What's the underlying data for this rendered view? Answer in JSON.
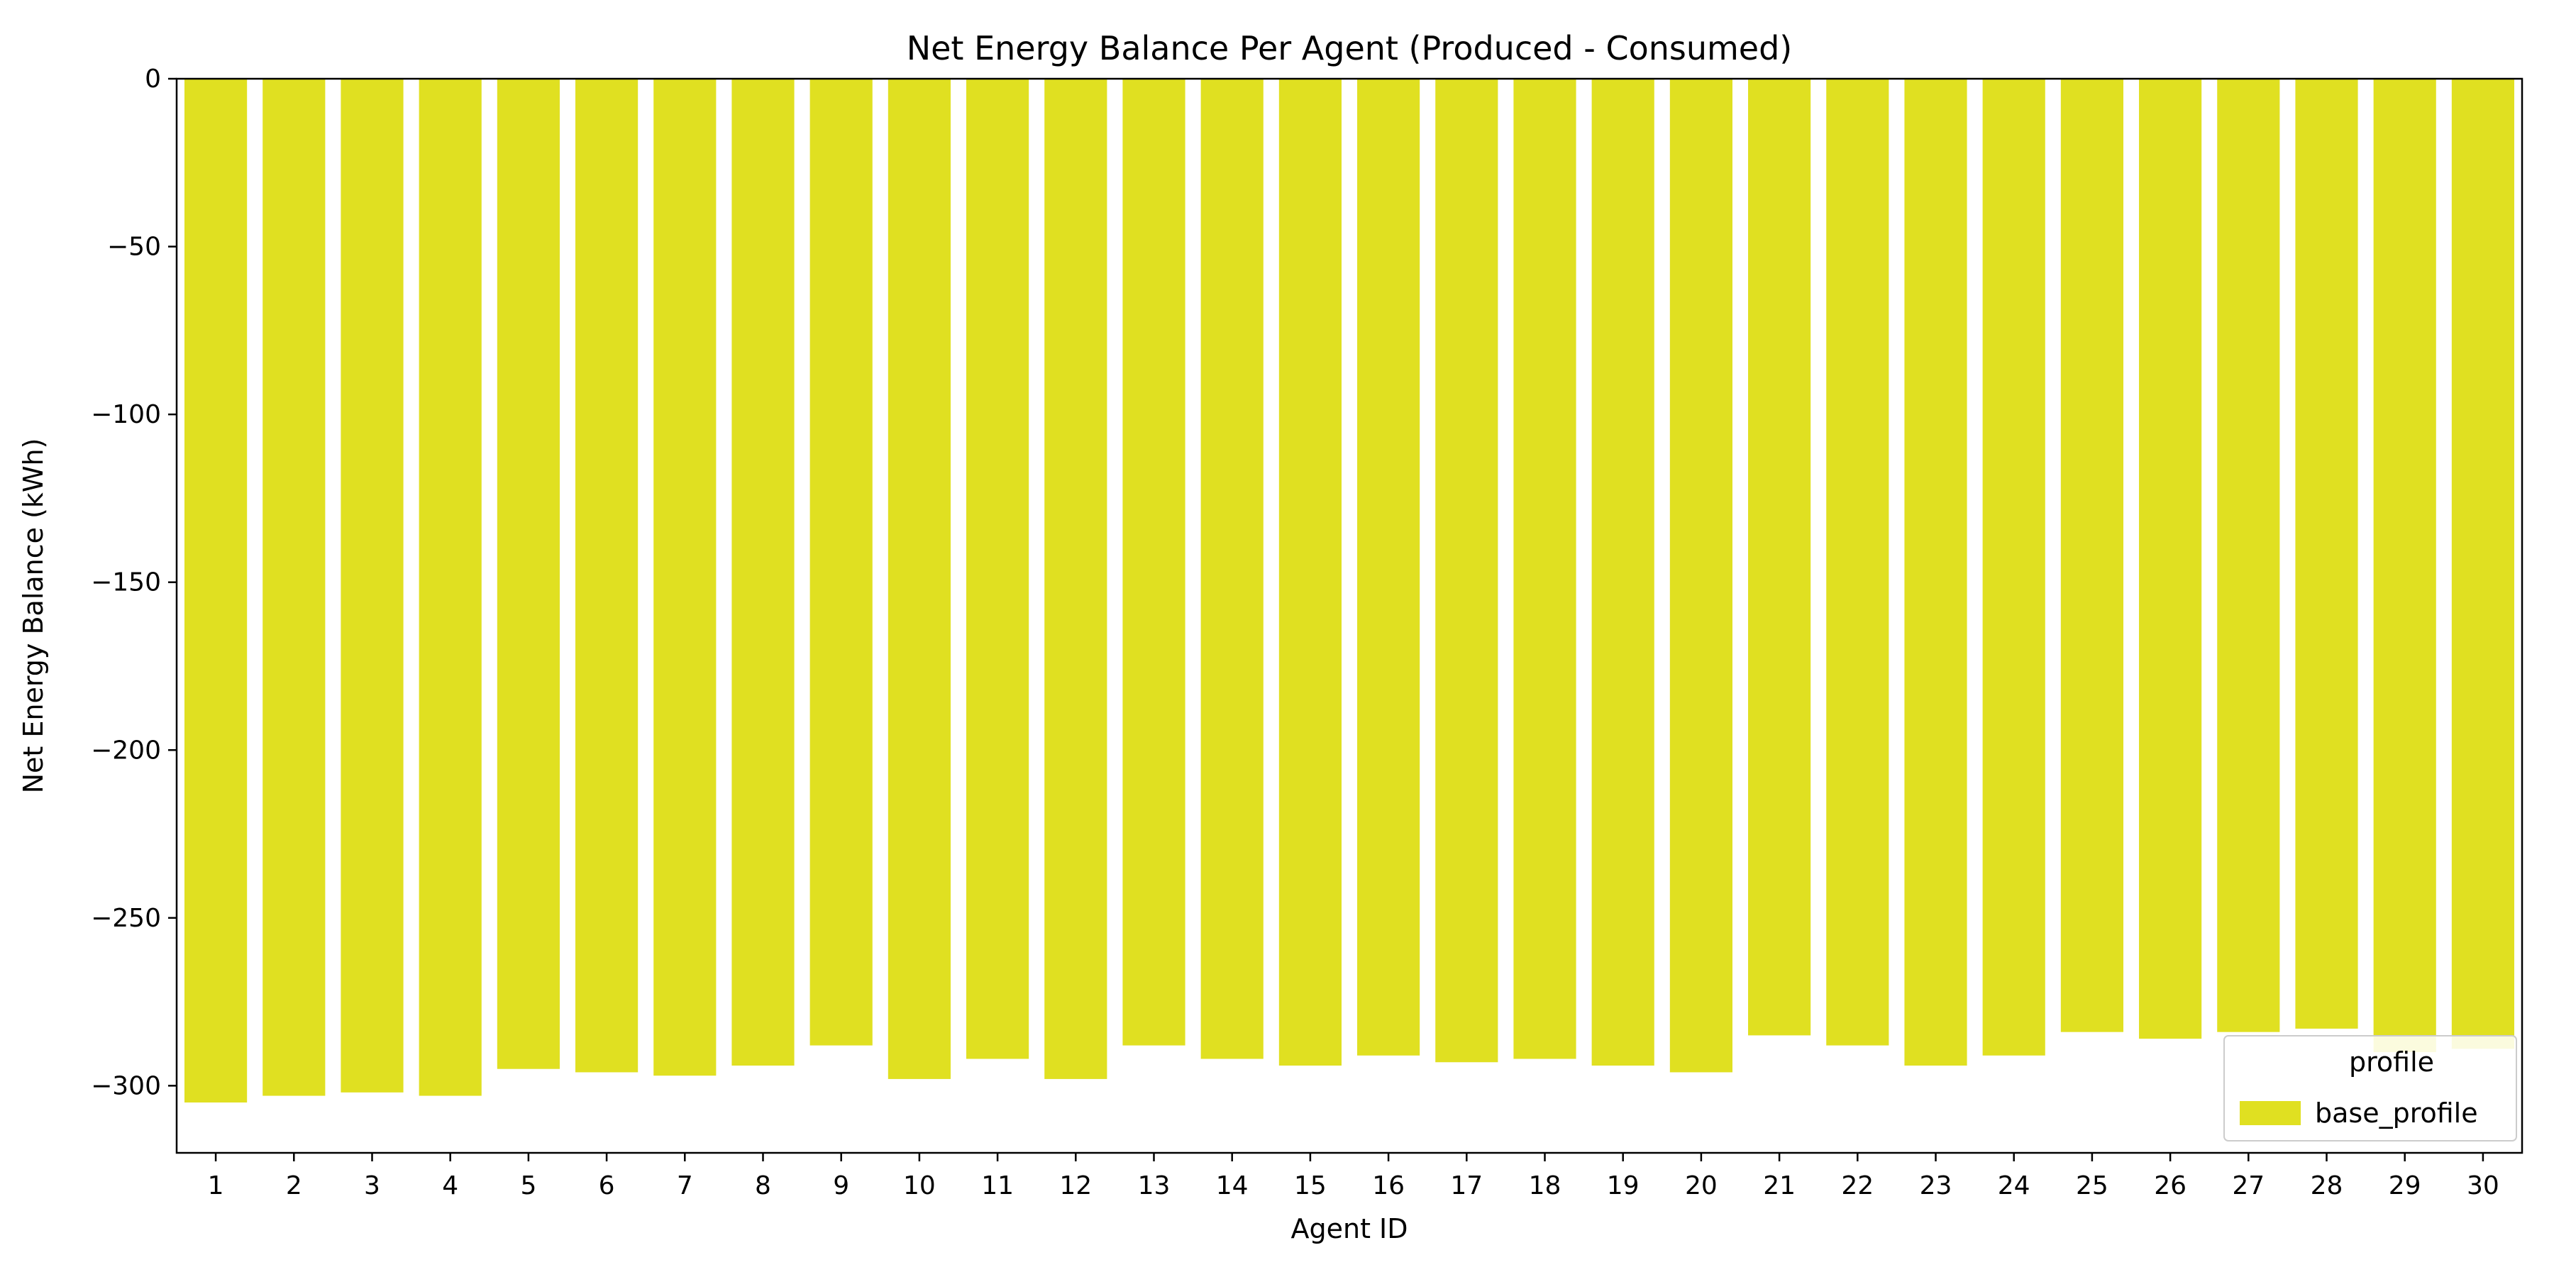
{
  "chart_data": {
    "type": "bar",
    "title": "Net Energy Balance Per Agent (Produced - Consumed)",
    "xlabel": "Agent ID",
    "ylabel": "Net Energy Balance (kWh)",
    "categories": [
      "1",
      "2",
      "3",
      "4",
      "5",
      "6",
      "7",
      "8",
      "9",
      "10",
      "11",
      "12",
      "13",
      "14",
      "15",
      "16",
      "17",
      "18",
      "19",
      "20",
      "21",
      "22",
      "23",
      "24",
      "25",
      "26",
      "27",
      "28",
      "29",
      "30"
    ],
    "series": [
      {
        "name": "base_profile",
        "color": "#e0e021",
        "values": [
          -305,
          -303,
          -302,
          -303,
          -295,
          -296,
          -297,
          -294,
          -288,
          -298,
          -292,
          -298,
          -288,
          -292,
          -294,
          -291,
          -293,
          -292,
          -294,
          -296,
          -285,
          -288,
          -294,
          -291,
          -284,
          -286,
          -284,
          -283,
          -290,
          -289
        ]
      }
    ],
    "ylim": [
      -320,
      0
    ],
    "yticks": [
      0,
      -50,
      -100,
      -150,
      -200,
      -250,
      -300
    ],
    "ytick_labels": [
      "0",
      "−50",
      "−100",
      "−150",
      "−200",
      "−250",
      "−300"
    ],
    "legend": {
      "title": "profile",
      "position": "lower-right"
    },
    "grid": false
  }
}
